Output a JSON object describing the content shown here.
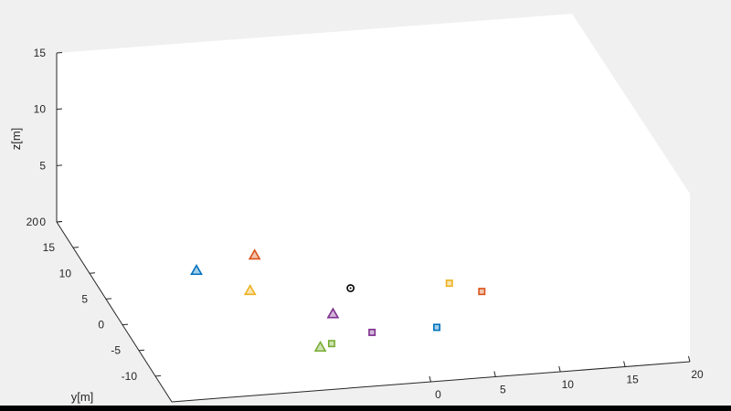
{
  "chart_data": {
    "type": "scatter",
    "title": "",
    "xlabel": "",
    "ylabel": "y[m]",
    "zlabel": "z[m]",
    "xlim": [
      -20,
      20
    ],
    "ylim": [
      -15,
      20
    ],
    "zlim": [
      0,
      15
    ],
    "x_ticks": [
      "0",
      "5",
      "10",
      "15",
      "20"
    ],
    "y_ticks": [
      "20",
      "15",
      "10",
      "5",
      "0",
      "-5",
      "-10"
    ],
    "z_ticks": [
      "15",
      "10",
      "5",
      "0"
    ],
    "grid": false,
    "box": true,
    "points": [
      {
        "marker": "circle",
        "color": "#000000",
        "x": -1.5,
        "y": 3.5,
        "z": 0
      },
      {
        "marker": "triangle",
        "color": "#0072bd",
        "x": -12,
        "y": 9,
        "z": 0
      },
      {
        "marker": "triangle",
        "color": "#d95319",
        "x": -7,
        "y": 11,
        "z": 0
      },
      {
        "marker": "triangle",
        "color": "#edb120",
        "x": -9,
        "y": 4.5,
        "z": 0
      },
      {
        "marker": "triangle",
        "color": "#7e2f8e",
        "x": -4,
        "y": -1,
        "z": 0
      },
      {
        "marker": "triangle",
        "color": "#77ac30",
        "x": -6.5,
        "y": -7,
        "z": 0
      },
      {
        "marker": "square",
        "color": "#77ac30",
        "x": -5.5,
        "y": -6.5,
        "z": 0
      },
      {
        "marker": "square",
        "color": "#7e2f8e",
        "x": -2,
        "y": -5,
        "z": 0
      },
      {
        "marker": "square",
        "color": "#0072bd",
        "x": 3,
        "y": -5,
        "z": 0
      },
      {
        "marker": "square",
        "color": "#edb120",
        "x": 6,
        "y": 3,
        "z": 0
      },
      {
        "marker": "square",
        "color": "#d95319",
        "x": 8,
        "y": 1,
        "z": 0
      }
    ]
  }
}
